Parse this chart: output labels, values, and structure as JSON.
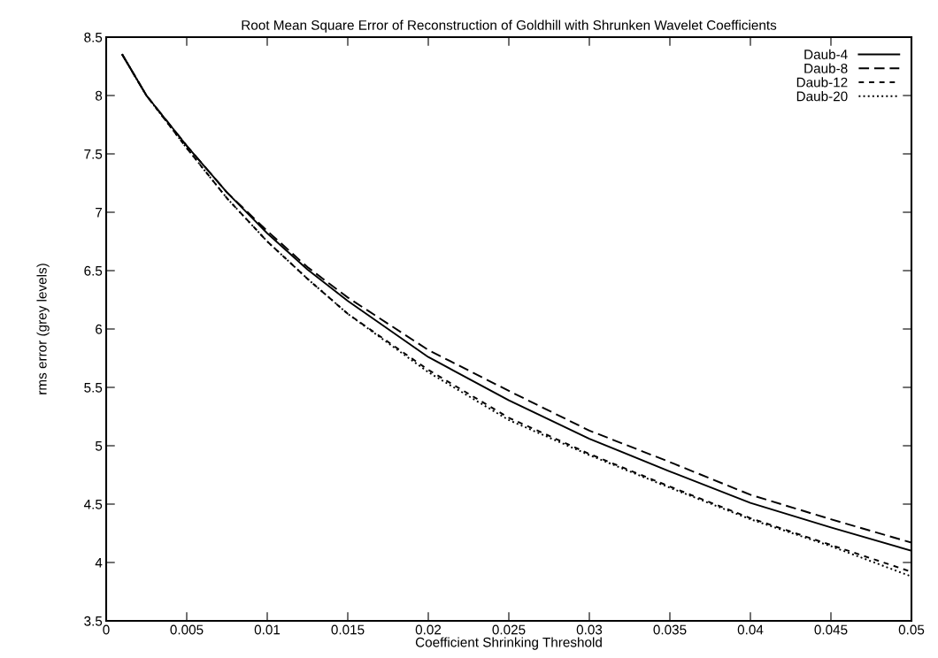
{
  "chart_data": {
    "type": "line",
    "title": "Root Mean Square Error of Reconstruction of Goldhill with Shrunken Wavelet Coefficients",
    "xlabel": "Coefficient Shrinking Threshold",
    "ylabel": "rms error (grey levels)",
    "x": [
      0.001,
      0.0025,
      0.005,
      0.0075,
      0.01,
      0.0125,
      0.015,
      0.02,
      0.025,
      0.03,
      0.035,
      0.04,
      0.045,
      0.05
    ],
    "series": [
      {
        "name": "Daub-4",
        "color": "#000000",
        "line_style": "solid",
        "values": [
          8.35,
          8.0,
          7.57,
          7.17,
          6.82,
          6.51,
          6.24,
          5.76,
          5.39,
          5.06,
          4.78,
          4.51,
          4.3,
          4.1
        ]
      },
      {
        "name": "Daub-8",
        "color": "#000000",
        "line_style": "dashed",
        "values": [
          8.35,
          8.0,
          7.57,
          7.17,
          6.84,
          6.53,
          6.27,
          5.82,
          5.47,
          5.13,
          4.86,
          4.58,
          4.37,
          4.17
        ]
      },
      {
        "name": "Daub-12",
        "color": "#000000",
        "line_style": "dashed",
        "values": [
          8.35,
          8.0,
          7.55,
          7.12,
          6.75,
          6.43,
          6.13,
          5.65,
          5.24,
          4.93,
          4.65,
          4.38,
          4.15,
          3.92
        ]
      },
      {
        "name": "Daub-20",
        "color": "#000000",
        "line_style": "dotted",
        "values": [
          8.35,
          8.0,
          7.55,
          7.12,
          6.75,
          6.43,
          6.13,
          5.63,
          5.22,
          4.92,
          4.64,
          4.37,
          4.14,
          3.88
        ]
      }
    ],
    "xlim": [
      0,
      0.05
    ],
    "xticks": [
      0,
      0.005,
      0.01,
      0.015,
      0.02,
      0.025,
      0.03,
      0.035,
      0.04,
      0.045,
      0.05
    ],
    "ylim": [
      3.5,
      8.5
    ],
    "yticks": [
      3.5,
      4,
      4.5,
      5,
      5.5,
      6,
      6.5,
      7,
      7.5,
      8,
      8.5
    ],
    "grid": false,
    "legend": "top right",
    "marker": "none"
  }
}
